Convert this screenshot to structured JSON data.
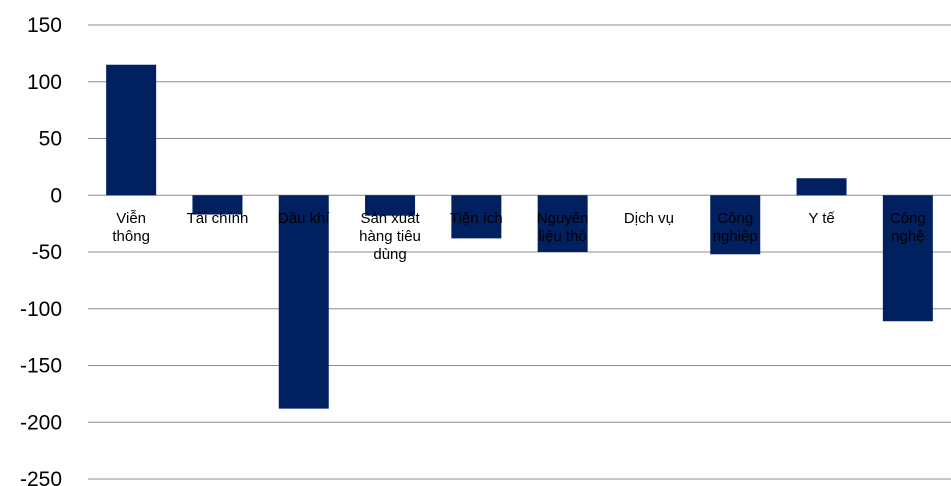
{
  "chart_data": {
    "type": "bar",
    "title": "",
    "xlabel": "",
    "ylabel": "",
    "categories": [
      [
        "Viễn",
        "thông"
      ],
      [
        "Tài chính"
      ],
      [
        "Dầu khí"
      ],
      [
        "Sản xuất",
        "hàng tiêu",
        "dùng"
      ],
      [
        "Tiện ích"
      ],
      [
        "Nguyên",
        "liệu thô"
      ],
      [
        "Dịch vụ"
      ],
      [
        "Công",
        "nghiệp"
      ],
      [
        "Y tế"
      ],
      [
        "Công",
        "nghệ"
      ]
    ],
    "series": [
      {
        "values": [
          115,
          -17,
          -188,
          -18,
          -38,
          -50,
          0,
          -52,
          15,
          -111
        ]
      }
    ],
    "ylim": [
      -250,
      150
    ],
    "yticks": [
      150,
      100,
      50,
      0,
      -50,
      -100,
      -150,
      -200,
      -250
    ],
    "grid": true,
    "legend": "none",
    "colors": {
      "bar": "#002060",
      "grid": "#8c8c8c",
      "text": "#000000"
    }
  }
}
